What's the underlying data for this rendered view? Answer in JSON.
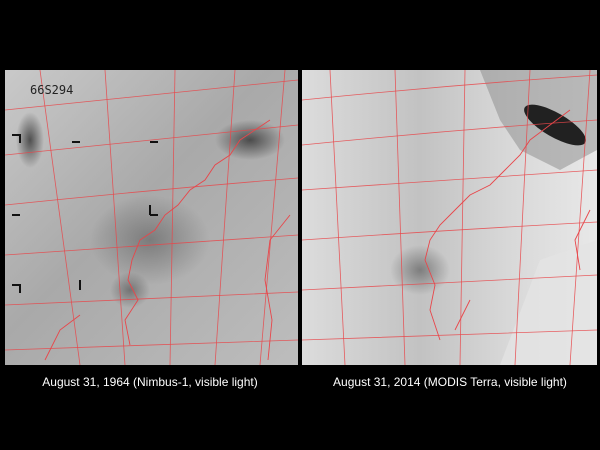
{
  "panels": [
    {
      "caption": "August 31, 1964 (Nimbus-1, visible light)",
      "film_label": "66S294"
    },
    {
      "caption": "August 31, 2014 (MODIS Terra, visible light)"
    }
  ]
}
